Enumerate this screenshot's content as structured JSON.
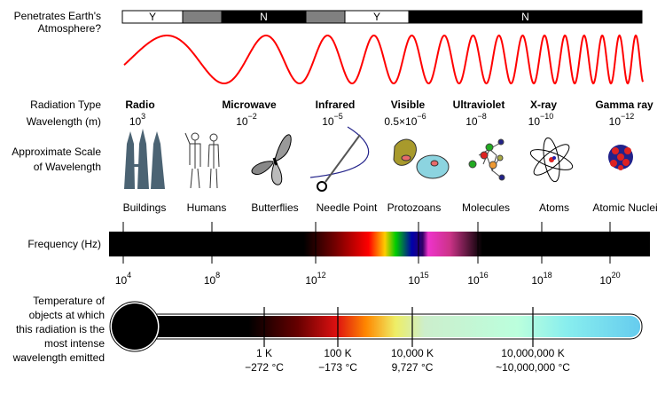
{
  "atmosphere": {
    "label_line1": "Penetrates Earth's",
    "label_line2": "Atmosphere?",
    "segments": [
      {
        "label": "Y",
        "color": "#ffffff"
      },
      {
        "label": "",
        "color": "#808080"
      },
      {
        "label": "N",
        "color": "#000000"
      },
      {
        "label": "",
        "color": "#808080"
      },
      {
        "label": "Y",
        "color": "#ffffff"
      },
      {
        "label": "N",
        "color": "#000000"
      }
    ]
  },
  "wave_color": "#ff0000",
  "rows": {
    "radiation_type": "Radiation Type",
    "wavelength": "Wavelength (m)",
    "scale_line1": "Approximate Scale",
    "scale_line2": "of Wavelength",
    "frequency": "Frequency (Hz)",
    "temp_line1": "Temperature of",
    "temp_line2": "objects at which",
    "temp_line3": "this radiation is the",
    "temp_line4": "most intense",
    "temp_line5": "wavelength emitted"
  },
  "bands": [
    {
      "name": "Radio",
      "wl_base": "10",
      "wl_exp": "3"
    },
    {
      "name": "Microwave",
      "wl_base": "10",
      "wl_exp": "−2"
    },
    {
      "name": "Infrared",
      "wl_base": "10",
      "wl_exp": "−5"
    },
    {
      "name": "Visible",
      "wl_base": "0.5×10",
      "wl_exp": "−6"
    },
    {
      "name": "Ultraviolet",
      "wl_base": "10",
      "wl_exp": "−8"
    },
    {
      "name": "X-ray",
      "wl_base": "10",
      "wl_exp": "−10"
    },
    {
      "name": "Gamma ray",
      "wl_base": "10",
      "wl_exp": "−12"
    }
  ],
  "objects": [
    "Buildings",
    "Humans",
    "Butterflies",
    "Needle Point",
    "Protozoans",
    "Molecules",
    "Atoms",
    "Atomic Nuclei"
  ],
  "frequency_ticks": [
    {
      "base": "10",
      "exp": "4"
    },
    {
      "base": "10",
      "exp": "8"
    },
    {
      "base": "10",
      "exp": "12"
    },
    {
      "base": "10",
      "exp": "15"
    },
    {
      "base": "10",
      "exp": "16"
    },
    {
      "base": "10",
      "exp": "18"
    },
    {
      "base": "10",
      "exp": "20"
    }
  ],
  "temperatures": [
    {
      "kelvin": "1 K",
      "celsius": "−272 °C"
    },
    {
      "kelvin": "100 K",
      "celsius": "−173 °C"
    },
    {
      "kelvin": "10,000 K",
      "celsius": "9,727 °C"
    },
    {
      "kelvin": "10,000,000 K",
      "celsius": "~10,000,000 °C"
    }
  ]
}
